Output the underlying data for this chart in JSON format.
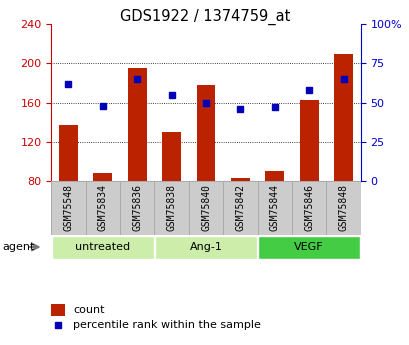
{
  "title": "GDS1922 / 1374759_at",
  "samples": [
    "GSM75548",
    "GSM75834",
    "GSM75836",
    "GSM75838",
    "GSM75840",
    "GSM75842",
    "GSM75844",
    "GSM75846",
    "GSM75848"
  ],
  "counts": [
    137,
    88,
    195,
    130,
    178,
    83,
    90,
    163,
    210
  ],
  "percentiles": [
    62,
    48,
    65,
    55,
    50,
    46,
    47,
    58,
    65
  ],
  "bar_bottom": 80,
  "ylim_left": [
    80,
    240
  ],
  "ylim_right": [
    0,
    100
  ],
  "yticks_left": [
    80,
    120,
    160,
    200,
    240
  ],
  "yticks_right": [
    0,
    25,
    50,
    75,
    100
  ],
  "yticklabels_right": [
    "0",
    "25",
    "50",
    "75",
    "100%"
  ],
  "bar_color": "#bb2200",
  "marker_color": "#0000bb",
  "groups": [
    {
      "label": "untreated",
      "indices": [
        0,
        1,
        2
      ],
      "color": "#cceeaa"
    },
    {
      "label": "Ang-1",
      "indices": [
        3,
        4,
        5
      ],
      "color": "#cceeaa"
    },
    {
      "label": "VEGF",
      "indices": [
        6,
        7,
        8
      ],
      "color": "#44cc44"
    }
  ],
  "agent_label": "agent",
  "legend_count_label": "count",
  "legend_percentile_label": "percentile rank within the sample",
  "left_axis_color": "#cc0000",
  "right_axis_color": "#0000cc",
  "sample_box_color": "#cccccc",
  "sample_box_edge": "#aaaaaa"
}
